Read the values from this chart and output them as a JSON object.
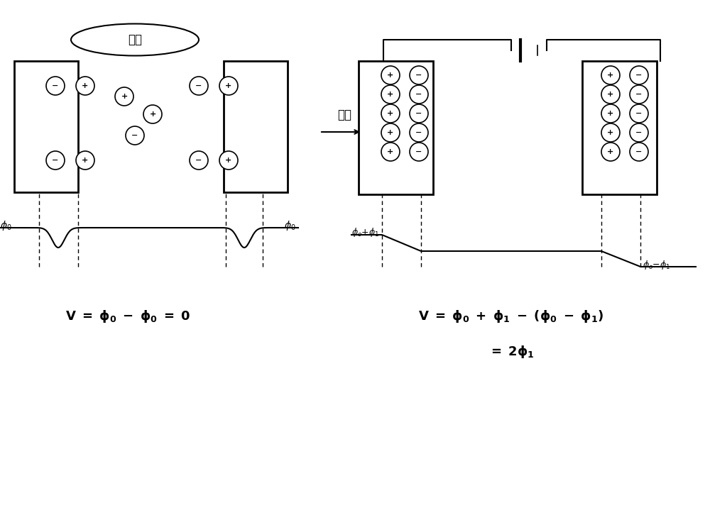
{
  "bg_color": "#ffffff",
  "title": "",
  "left_label": "断电",
  "arrow_label": "充电",
  "left_formula": "V = φ₀ - φ₀ = 0",
  "right_formula1": "V = φ₀ + φ₁ - (φ₀ - φ₁)",
  "right_formula2": "= 2φ₁",
  "phi0_label": "φ₀",
  "phi0_plus_phi1_label": "φ₀+φ₁",
  "phi0_minus_phi1_label": "φ₀-φ₁"
}
